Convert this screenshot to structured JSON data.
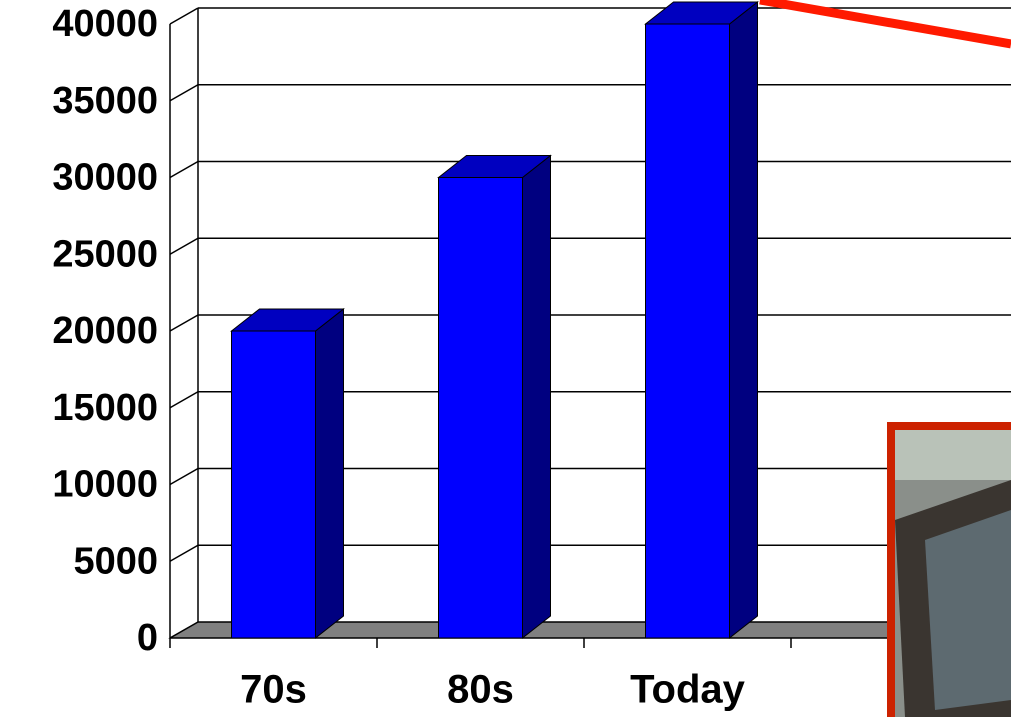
{
  "chart_data": {
    "type": "bar",
    "categories": [
      "70s",
      "80s",
      "Today"
    ],
    "values": [
      20000,
      30000,
      40000
    ],
    "color": "#0000ff",
    "ylim": [
      0,
      40000
    ],
    "yticks": [
      0,
      5000,
      10000,
      15000,
      20000,
      25000,
      30000,
      35000,
      40000
    ],
    "grid": true
  }
}
